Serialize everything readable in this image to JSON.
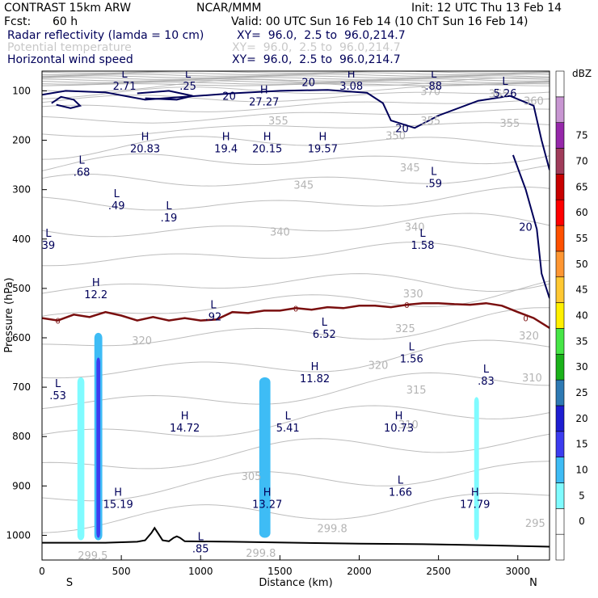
{
  "header": {
    "model": "CONTRAST 15km ARW",
    "center": "NCAR/MMM",
    "init": "Init: 12 UTC Thu 13 Feb 14",
    "fcst_label": "Fcst:",
    "fcst_value": "60 h",
    "valid": "Valid: 00 UTC Sun 16 Feb 14 (10 ChT Sun 16 Feb 14)"
  },
  "fields": [
    {
      "name": "Radar reflectivity (lamda = 10 cm)",
      "xy": "XY=  96.0,  2.5 to  96.0,214.7",
      "color": "#00005a"
    },
    {
      "name": "Potential temperature",
      "xy": "XY=  96.0,  2.5 to  96.0,214.7",
      "color": "#c8c8c8"
    },
    {
      "name": "Horizontal wind speed",
      "xy": "XY=  96.0,  2.5 to  96.0,214.7",
      "color": "#00005a"
    }
  ],
  "chart_data": {
    "type": "contour-cross-section",
    "xlabel": "Distance (km)",
    "ylabel": "Pressure (hPa)",
    "xlim": [
      0,
      3200
    ],
    "ylim": [
      1050,
      60
    ],
    "x_ticks": [
      0,
      500,
      1000,
      1500,
      2000,
      2500,
      3000
    ],
    "y_ticks": [
      100,
      200,
      300,
      400,
      500,
      600,
      700,
      800,
      900,
      1000
    ],
    "endpoint_labels": {
      "left": "S",
      "right": "N"
    },
    "colorbar": {
      "unit": "dBZ",
      "levels": [
        "0",
        "5",
        "10",
        "15",
        "20",
        "25",
        "30",
        "35",
        "40",
        "45",
        "50",
        "55",
        "60",
        "65",
        "70",
        "75"
      ],
      "colors": [
        "#ffffff",
        "#ffffff",
        "#7ffbff",
        "#3ebcf5",
        "#3c3cf0",
        "#1e1ed2",
        "#2e7ab4",
        "#1ab21a",
        "#46e646",
        "#fff000",
        "#ffc832",
        "#ff9632",
        "#ff5000",
        "#ff0000",
        "#c80000",
        "#a03c5a",
        "#9628aa",
        "#c896d2",
        "#ffffff"
      ]
    },
    "theta_labels": [
      {
        "text": "370",
        "x": 2450,
        "p": 100
      },
      {
        "text": "365",
        "x": 2880,
        "p": 105
      },
      {
        "text": "360",
        "x": 3100,
        "p": 120
      },
      {
        "text": "355",
        "x": 1490,
        "p": 160
      },
      {
        "text": "355",
        "x": 2450,
        "p": 160
      },
      {
        "text": "355",
        "x": 2950,
        "p": 165
      },
      {
        "text": "350",
        "x": 2230,
        "p": 190
      },
      {
        "text": "345",
        "x": 2320,
        "p": 255
      },
      {
        "text": "345",
        "x": 1650,
        "p": 290
      },
      {
        "text": "340",
        "x": 1500,
        "p": 385
      },
      {
        "text": "340",
        "x": 2350,
        "p": 375
      },
      {
        "text": "330",
        "x": 2340,
        "p": 510
      },
      {
        "text": "325",
        "x": 2290,
        "p": 580
      },
      {
        "text": "320",
        "x": 630,
        "p": 605
      },
      {
        "text": "320",
        "x": 2120,
        "p": 655
      },
      {
        "text": "320",
        "x": 3070,
        "p": 595
      },
      {
        "text": "315",
        "x": 2360,
        "p": 705
      },
      {
        "text": "310",
        "x": 2310,
        "p": 775
      },
      {
        "text": "310",
        "x": 3090,
        "p": 680
      },
      {
        "text": "305",
        "x": 1320,
        "p": 880
      },
      {
        "text": "295",
        "x": 3110,
        "p": 975
      },
      {
        "text": "299.8",
        "x": 1830,
        "p": 985
      },
      {
        "text": "299.5",
        "x": 320,
        "p": 1040
      },
      {
        "text": "299.8",
        "x": 1380,
        "p": 1035
      }
    ],
    "wind_labels": [
      {
        "text": "20",
        "x": 1180,
        "p": 110
      },
      {
        "text": "20",
        "x": 1680,
        "p": 82
      },
      {
        "text": "20",
        "x": 2270,
        "p": 175
      },
      {
        "text": "20",
        "x": 3050,
        "p": 375
      }
    ],
    "extrema": [
      {
        "kind": "L",
        "value": "2.71",
        "x": 520,
        "p": 78
      },
      {
        "kind": "L",
        "value": ".25",
        "x": 920,
        "p": 78
      },
      {
        "kind": "H",
        "value": "27.27",
        "x": 1400,
        "p": 110
      },
      {
        "kind": "H",
        "value": "3.08",
        "x": 1950,
        "p": 78
      },
      {
        "kind": "L",
        "value": ".88",
        "x": 2470,
        "p": 78
      },
      {
        "kind": "L",
        "value": "5.26",
        "x": 2920,
        "p": 93
      },
      {
        "kind": "H",
        "value": "20.83",
        "x": 650,
        "p": 205
      },
      {
        "kind": "H",
        "value": "19.4",
        "x": 1160,
        "p": 205
      },
      {
        "kind": "H",
        "value": "20.15",
        "x": 1420,
        "p": 205
      },
      {
        "kind": "H",
        "value": "19.57",
        "x": 1770,
        "p": 205
      },
      {
        "kind": "L",
        "value": ".68",
        "x": 250,
        "p": 252
      },
      {
        "kind": "L",
        "value": ".59",
        "x": 2470,
        "p": 275
      },
      {
        "kind": "L",
        "value": ".49",
        "x": 470,
        "p": 320
      },
      {
        "kind": "L",
        "value": ".19",
        "x": 800,
        "p": 345
      },
      {
        "kind": "L",
        "value": "39",
        "x": 40,
        "p": 400
      },
      {
        "kind": "L",
        "value": "1.58",
        "x": 2400,
        "p": 400
      },
      {
        "kind": "H",
        "value": "12.2",
        "x": 340,
        "p": 500
      },
      {
        "kind": "L",
        "value": ".92",
        "x": 1080,
        "p": 545
      },
      {
        "kind": "L",
        "value": "6.52",
        "x": 1780,
        "p": 580
      },
      {
        "kind": "L",
        "value": "1.56",
        "x": 2330,
        "p": 630
      },
      {
        "kind": "H",
        "value": "11.82",
        "x": 1720,
        "p": 670
      },
      {
        "kind": "L",
        "value": ".83",
        "x": 2800,
        "p": 675
      },
      {
        "kind": "L",
        "value": ".53",
        "x": 100,
        "p": 705
      },
      {
        "kind": "H",
        "value": "14.72",
        "x": 900,
        "p": 770
      },
      {
        "kind": "L",
        "value": "5.41",
        "x": 1550,
        "p": 770
      },
      {
        "kind": "H",
        "value": "10.73",
        "x": 2250,
        "p": 770
      },
      {
        "kind": "L",
        "value": "1.66",
        "x": 2260,
        "p": 900
      },
      {
        "kind": "H",
        "value": "15.19",
        "x": 480,
        "p": 925
      },
      {
        "kind": "H",
        "value": "13.27",
        "x": 1420,
        "p": 925
      },
      {
        "kind": "H",
        "value": "17.79",
        "x": 2730,
        "p": 925
      },
      {
        "kind": "L",
        "value": ".85",
        "x": 1000,
        "p": 1015
      }
    ],
    "freezing_line": {
      "label": "0",
      "x": [
        0,
        100,
        200,
        300,
        400,
        500,
        600,
        700,
        800,
        900,
        1000,
        1100,
        1200,
        1300,
        1400,
        1500,
        1600,
        1700,
        1800,
        1900,
        2000,
        2100,
        2200,
        2300,
        2400,
        2500,
        2600,
        2700,
        2800,
        2900,
        3000,
        3100,
        3200
      ],
      "p": [
        560,
        565,
        553,
        558,
        548,
        555,
        565,
        558,
        565,
        560,
        565,
        563,
        548,
        550,
        545,
        545,
        540,
        543,
        538,
        540,
        535,
        535,
        538,
        533,
        530,
        530,
        532,
        533,
        530,
        535,
        548,
        560,
        580
      ]
    },
    "terrain": {
      "x": [
        0,
        200,
        400,
        600,
        650,
        690,
        710,
        730,
        760,
        800,
        830,
        850,
        870,
        900,
        1200,
        1600,
        2000,
        2400,
        2800,
        3200
      ],
      "p": [
        1015,
        1015,
        1015,
        1013,
        1010,
        995,
        985,
        995,
        1010,
        1012,
        1005,
        1002,
        1005,
        1012,
        1013,
        1015,
        1017,
        1018,
        1020,
        1023
      ]
    },
    "reflectivity_cells": [
      {
        "x": 245,
        "half_width": 22,
        "p_top": 680,
        "p_bottom": 1010,
        "dbz": 10
      },
      {
        "x": 355,
        "half_width": 25,
        "p_top": 590,
        "p_bottom": 1010,
        "dbz": 15
      },
      {
        "x": 355,
        "half_width": 12,
        "p_top": 640,
        "p_bottom": 1005,
        "dbz": 20
      },
      {
        "x": 1405,
        "half_width": 35,
        "p_top": 680,
        "p_bottom": 1005,
        "dbz": 15
      },
      {
        "x": 2740,
        "half_width": 15,
        "p_top": 720,
        "p_bottom": 1010,
        "dbz": 10
      }
    ]
  }
}
